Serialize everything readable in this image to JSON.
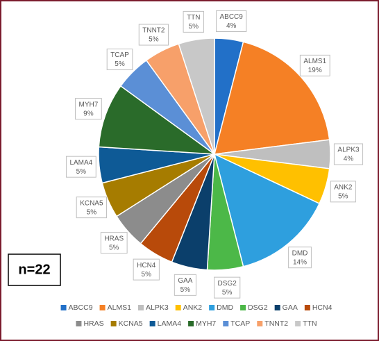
{
  "chart_data": {
    "type": "pie",
    "categories": [
      "ABCC9",
      "ALMS1",
      "ALPK3",
      "ANK2",
      "DMD",
      "DSG2",
      "GAA",
      "HCN4",
      "HRAS",
      "KCNA5",
      "LAMA4",
      "MYH7",
      "TCAP",
      "TNNT2",
      "TTN"
    ],
    "values": [
      4,
      19,
      4,
      5,
      14,
      5,
      5,
      5,
      5,
      5,
      5,
      9,
      5,
      5,
      5
    ],
    "value_labels": [
      "4%",
      "19%",
      "4%",
      "5%",
      "14%",
      "5%",
      "5%",
      "5%",
      "5%",
      "5%",
      "5%",
      "9%",
      "5%",
      "5%",
      "5%"
    ],
    "colors": [
      "#2270C8",
      "#F58025",
      "#BFBFBF",
      "#FFC000",
      "#2E9FDE",
      "#4CB848",
      "#0B3F6B",
      "#B84A0A",
      "#8C8C8C",
      "#A67C00",
      "#0E5A96",
      "#2A6B2A",
      "#5B8FD6",
      "#F7A06A",
      "#C8C8C8"
    ],
    "annotation": "n=22",
    "legend": "bottom"
  }
}
